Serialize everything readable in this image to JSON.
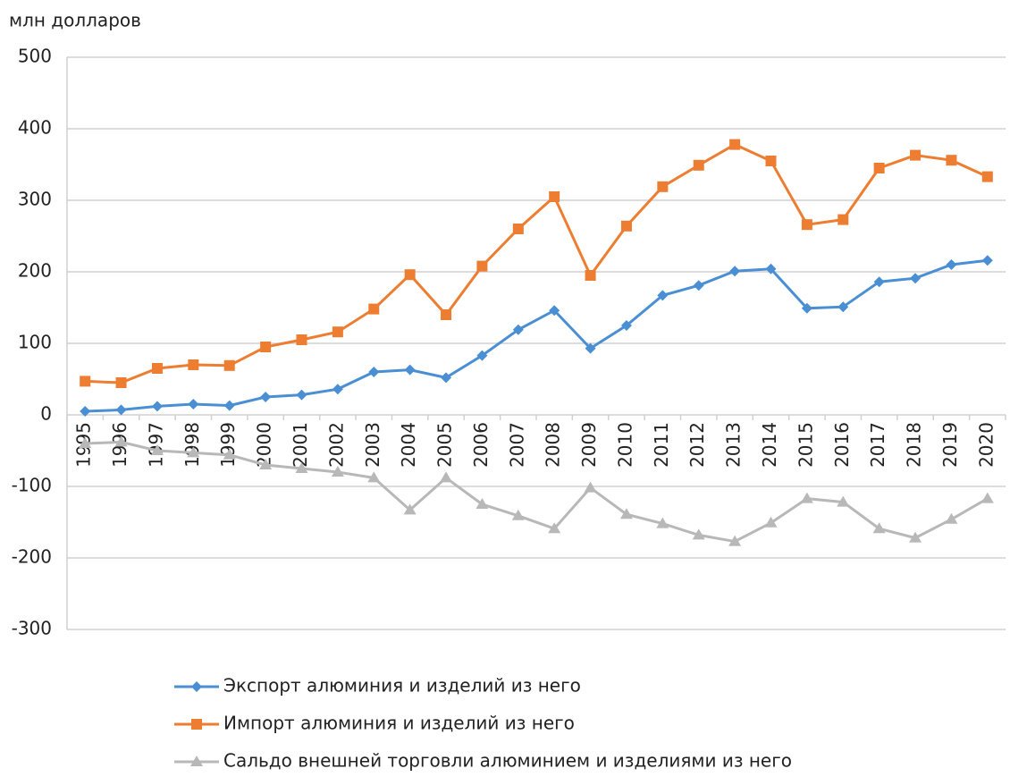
{
  "chart_data": {
    "type": "line",
    "y_label": "млн долларов",
    "categories": [
      "1995",
      "1996",
      "1997",
      "1998",
      "1999",
      "2000",
      "2001",
      "2002",
      "2003",
      "2004",
      "2005",
      "2006",
      "2007",
      "2008",
      "2009",
      "2010",
      "2011",
      "2012",
      "2013",
      "2014",
      "2015",
      "2016",
      "2017",
      "2018",
      "2019",
      "2020"
    ],
    "series": [
      {
        "name": "Экспорт алюминия и изделий из него",
        "color": "#4a8fd4",
        "marker": "diamond",
        "values": [
          5,
          7,
          12,
          15,
          13,
          25,
          28,
          36,
          60,
          63,
          52,
          83,
          119,
          146,
          93,
          125,
          167,
          181,
          201,
          204,
          149,
          151,
          186,
          191,
          210,
          216
        ]
      },
      {
        "name": "Импорт алюминия и изделий из него",
        "color": "#ed7d31",
        "marker": "square",
        "values": [
          47,
          45,
          65,
          70,
          69,
          95,
          105,
          116,
          148,
          196,
          140,
          208,
          260,
          305,
          195,
          264,
          319,
          349,
          378,
          355,
          266,
          273,
          345,
          363,
          356,
          333
        ]
      },
      {
        "name": "Сальдо внешней торговли алюминием и изделиями из него",
        "color": "#b8b8b8",
        "marker": "triangle",
        "values": [
          -40,
          -38,
          -50,
          -53,
          -56,
          -70,
          -75,
          -80,
          -88,
          -133,
          -88,
          -125,
          -141,
          -159,
          -102,
          -139,
          -152,
          -168,
          -177,
          -151,
          -117,
          -122,
          -159,
          -172,
          -146,
          -117
        ]
      }
    ],
    "ylim": [
      -300,
      500
    ],
    "yticks": [
      -300,
      -200,
      -100,
      0,
      100,
      200,
      300,
      400,
      500
    ],
    "grid": true
  }
}
